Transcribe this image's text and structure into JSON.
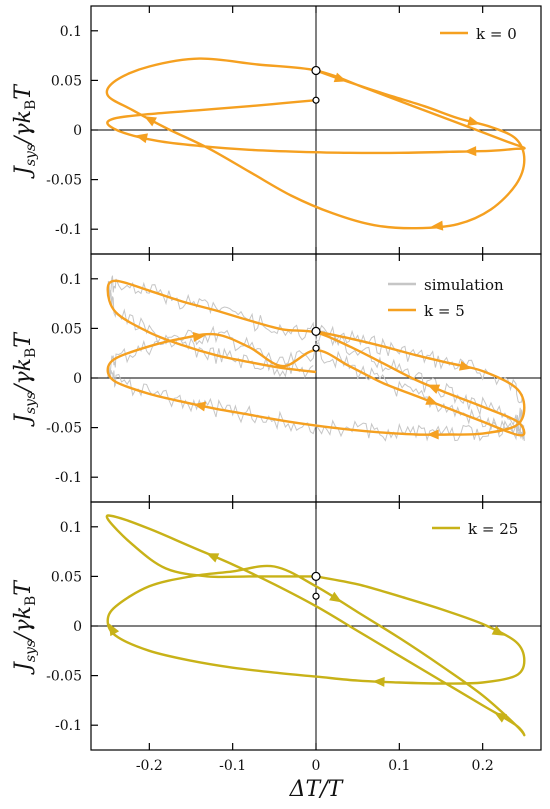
{
  "figure": {
    "x_axis_label": "ΔT/T"
  },
  "colors": {
    "orange": "#F5A020",
    "olive": "#C8B218",
    "simulation": "#c6c6c6"
  },
  "chart_data": [
    {
      "type": "line",
      "panel": "top",
      "ylabel": "J_sys/γk_BT",
      "xlim": [
        -0.27,
        0.27
      ],
      "ylim": [
        -0.125,
        0.125
      ],
      "xticks": [
        -0.2,
        -0.1,
        0,
        0.1,
        0.2
      ],
      "xtick_labels": [
        "-0.2",
        "-0.1",
        "0",
        "0.1",
        "0.2"
      ],
      "yticks": [
        0.1,
        0.05,
        0,
        -0.05,
        -0.1
      ],
      "ytick_labels": [
        "0.1",
        "0.05",
        "0",
        "-0.05",
        "-0.1"
      ],
      "series": [
        {
          "name": "k = 0",
          "legend_label": "k = 0",
          "color": "orange",
          "x": [
            0,
            0.03,
            0.08,
            0.13,
            0.17,
            0.21,
            0.24,
            0.25,
            0.24,
            0.21,
            0.17,
            0.12,
            0.07,
            0.02,
            -0.03,
            -0.08,
            -0.13,
            -0.18,
            -0.22,
            -0.25,
            -0.24,
            -0.2,
            -0.14,
            -0.07,
            0,
            0.06,
            0.12,
            0.18,
            0.23,
            0.25,
            0.24,
            0.21,
            0.16,
            0.1,
            0.04,
            -0.02,
            -0.08,
            -0.14,
            -0.19,
            -0.23,
            -0.25,
            -0.24,
            -0.2,
            -0.14,
            -0.08,
            -0.04,
            0
          ],
          "y": [
            0.06,
            0.051,
            0.037,
            0.024,
            0.012,
            0.003,
            -0.009,
            -0.03,
            -0.055,
            -0.08,
            -0.095,
            -0.099,
            -0.096,
            -0.084,
            -0.066,
            -0.042,
            -0.018,
            0.002,
            0.02,
            0.035,
            0.05,
            0.064,
            0.072,
            0.066,
            0.06,
            0.042,
            0.023,
            0.004,
            -0.012,
            -0.018,
            -0.019,
            -0.021,
            -0.022,
            -0.023,
            -0.023,
            -0.022,
            -0.02,
            -0.016,
            -0.011,
            -0.003,
            0.006,
            0.012,
            0.016,
            0.02,
            0.024,
            0.027,
            0.03
          ]
        }
      ],
      "points": [
        {
          "x": 0,
          "y": 0.06
        },
        {
          "x": 0,
          "y": 0.03
        }
      ]
    },
    {
      "type": "line",
      "panel": "middle",
      "ylabel": "J_sys/γk_BT",
      "xlim": [
        -0.27,
        0.27
      ],
      "ylim": [
        -0.125,
        0.125
      ],
      "xticks": [
        -0.2,
        -0.1,
        0,
        0.1,
        0.2
      ],
      "xtick_labels": [
        "-0.2",
        "-0.1",
        "0",
        "0.1",
        "0.2"
      ],
      "yticks": [
        0.1,
        0.05,
        0,
        -0.05,
        -0.1
      ],
      "ytick_labels": [
        "0.1",
        "0.05",
        "0",
        "-0.05",
        "-0.1"
      ],
      "series": [
        {
          "name": "simulation",
          "legend_label": "simulation",
          "color": "simulation",
          "x": [
            0,
            0.04,
            0.08,
            0.12,
            0.16,
            0.2,
            0.24,
            0.25,
            0.24,
            0.2,
            0.16,
            0.12,
            0.08,
            0.04,
            0,
            -0.04,
            -0.08,
            -0.12,
            -0.16,
            -0.2,
            -0.24,
            -0.25,
            -0.24,
            -0.2,
            -0.16,
            -0.12,
            -0.08,
            -0.04,
            0,
            0.04,
            0.08,
            0.12,
            0.16,
            0.2,
            0.24,
            0.25,
            0.24,
            0.2,
            0.16,
            0.12,
            0.08,
            0.04,
            0,
            -0.04,
            -0.08,
            -0.12,
            -0.16,
            -0.2,
            -0.24,
            -0.25,
            -0.24,
            -0.2,
            -0.16,
            -0.12,
            -0.08,
            -0.04,
            0
          ],
          "y": [
            0.047,
            0.04,
            0.032,
            0.023,
            0.015,
            0.007,
            -0.01,
            -0.03,
            -0.048,
            -0.056,
            -0.057,
            -0.057,
            -0.055,
            -0.052,
            -0.048,
            -0.043,
            -0.037,
            -0.031,
            -0.024,
            -0.016,
            -0.004,
            0.008,
            0.02,
            0.032,
            0.04,
            0.044,
            0.031,
            0.012,
            0.028,
            0.012,
            -0.005,
            -0.018,
            -0.031,
            -0.044,
            -0.057,
            -0.055,
            -0.043,
            -0.029,
            -0.016,
            -0.002,
            0.015,
            0.032,
            0.046,
            0.049,
            0.058,
            0.068,
            0.077,
            0.088,
            0.098,
            0.089,
            0.066,
            0.046,
            0.033,
            0.023,
            0.016,
            0.01,
            0.006
          ]
        },
        {
          "name": "k = 5",
          "legend_label": "k = 5",
          "color": "orange",
          "x": [
            0,
            0.04,
            0.08,
            0.12,
            0.16,
            0.2,
            0.24,
            0.25,
            0.24,
            0.2,
            0.16,
            0.12,
            0.08,
            0.04,
            0,
            -0.04,
            -0.08,
            -0.12,
            -0.16,
            -0.2,
            -0.24,
            -0.25,
            -0.24,
            -0.2,
            -0.16,
            -0.12,
            -0.08,
            -0.04,
            0,
            0.04,
            0.08,
            0.12,
            0.16,
            0.2,
            0.24,
            0.25,
            0.24,
            0.2,
            0.16,
            0.12,
            0.08,
            0.04,
            0,
            -0.04,
            -0.08,
            -0.12,
            -0.16,
            -0.2,
            -0.24,
            -0.25,
            -0.24,
            -0.2,
            -0.16,
            -0.12,
            -0.08,
            -0.04,
            0
          ],
          "y": [
            0.047,
            0.04,
            0.032,
            0.023,
            0.015,
            0.007,
            -0.01,
            -0.03,
            -0.048,
            -0.056,
            -0.057,
            -0.057,
            -0.055,
            -0.052,
            -0.048,
            -0.043,
            -0.037,
            -0.031,
            -0.024,
            -0.016,
            -0.004,
            0.008,
            0.02,
            0.032,
            0.04,
            0.044,
            0.031,
            0.012,
            0.028,
            0.012,
            -0.005,
            -0.018,
            -0.031,
            -0.044,
            -0.057,
            -0.055,
            -0.043,
            -0.029,
            -0.016,
            -0.002,
            0.015,
            0.032,
            0.046,
            0.049,
            0.058,
            0.068,
            0.077,
            0.088,
            0.098,
            0.089,
            0.066,
            0.046,
            0.033,
            0.023,
            0.016,
            0.01,
            0.006
          ]
        }
      ],
      "points": [
        {
          "x": 0,
          "y": 0.047
        },
        {
          "x": 0,
          "y": 0.03
        }
      ]
    },
    {
      "type": "line",
      "panel": "bottom",
      "ylabel": "J_sys/γk_BT",
      "xlim": [
        -0.27,
        0.27
      ],
      "ylim": [
        -0.125,
        0.125
      ],
      "xticks": [
        -0.2,
        -0.1,
        0,
        0.1,
        0.2
      ],
      "xtick_labels": [
        "-0.2",
        "-0.1",
        "0",
        "0.1",
        "0.2"
      ],
      "yticks": [
        0.1,
        0.05,
        0,
        -0.05,
        -0.1
      ],
      "ytick_labels": [
        "0.1",
        "0.05",
        "0",
        "-0.05",
        "-0.1"
      ],
      "series": [
        {
          "name": "k = 25",
          "legend_label": "k = 25",
          "color": "olive",
          "x": [
            0,
            0.05,
            0.1,
            0.15,
            0.2,
            0.24,
            0.25,
            0.24,
            0.2,
            0.15,
            0.1,
            0.05,
            0,
            -0.05,
            -0.1,
            -0.15,
            -0.2,
            -0.24,
            -0.25,
            -0.24,
            -0.2,
            -0.15,
            -0.1,
            -0.05,
            0,
            0.05,
            0.1,
            0.15,
            0.2,
            0.24,
            0.25,
            0.24,
            0.2,
            0.15,
            0.1,
            0.05,
            0,
            -0.05,
            -0.1,
            -0.15,
            -0.2,
            -0.24,
            -0.25,
            -0.22,
            -0.18,
            -0.13,
            -0.08,
            -0.04,
            0
          ],
          "y": [
            0.05,
            0.042,
            0.03,
            0.017,
            0.002,
            -0.016,
            -0.035,
            -0.05,
            -0.057,
            -0.058,
            -0.057,
            -0.055,
            -0.051,
            -0.047,
            -0.042,
            -0.035,
            -0.025,
            -0.01,
            0.005,
            0.02,
            0.04,
            0.05,
            0.055,
            0.06,
            0.04,
            0.014,
            -0.012,
            -0.04,
            -0.07,
            -0.1,
            -0.11,
            -0.1,
            -0.08,
            -0.055,
            -0.03,
            -0.005,
            0.02,
            0.042,
            0.062,
            0.08,
            0.098,
            0.11,
            0.108,
            0.082,
            0.058,
            0.05,
            0.05,
            0.05,
            0.05
          ]
        }
      ],
      "points": [
        {
          "x": 0,
          "y": 0.05
        },
        {
          "x": 0,
          "y": 0.03
        }
      ]
    }
  ]
}
